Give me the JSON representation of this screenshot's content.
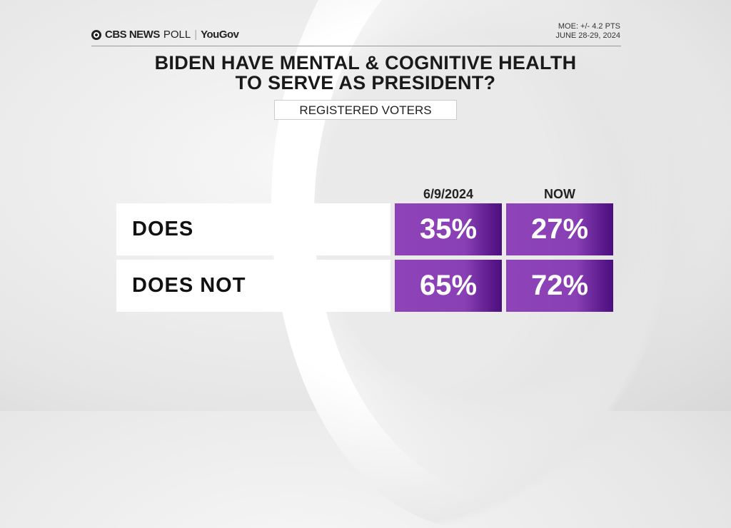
{
  "brand": {
    "network": "CBS NEWS",
    "poll": "POLL",
    "partner": "YouGov"
  },
  "meta": {
    "moe": "MOE: +/- 4.2 PTS",
    "dates": "JUNE 28-29, 2024"
  },
  "chart_data": {
    "type": "table",
    "title": "BIDEN HAVE MENTAL & COGNITIVE HEALTH TO SERVE AS PRESIDENT?",
    "title_lines": [
      "BIDEN HAVE MENTAL & COGNITIVE HEALTH",
      "TO SERVE AS PRESIDENT?"
    ],
    "subtitle": "REGISTERED VOTERS",
    "columns": [
      "6/9/2024",
      "NOW"
    ],
    "rows": [
      {
        "label": "DOES",
        "values": [
          "35%",
          "27%"
        ]
      },
      {
        "label": "DOES NOT",
        "values": [
          "65%",
          "72%"
        ]
      }
    ]
  },
  "colors": {
    "cell": "#8a40b5",
    "cell_dark": "#4c0f80"
  }
}
